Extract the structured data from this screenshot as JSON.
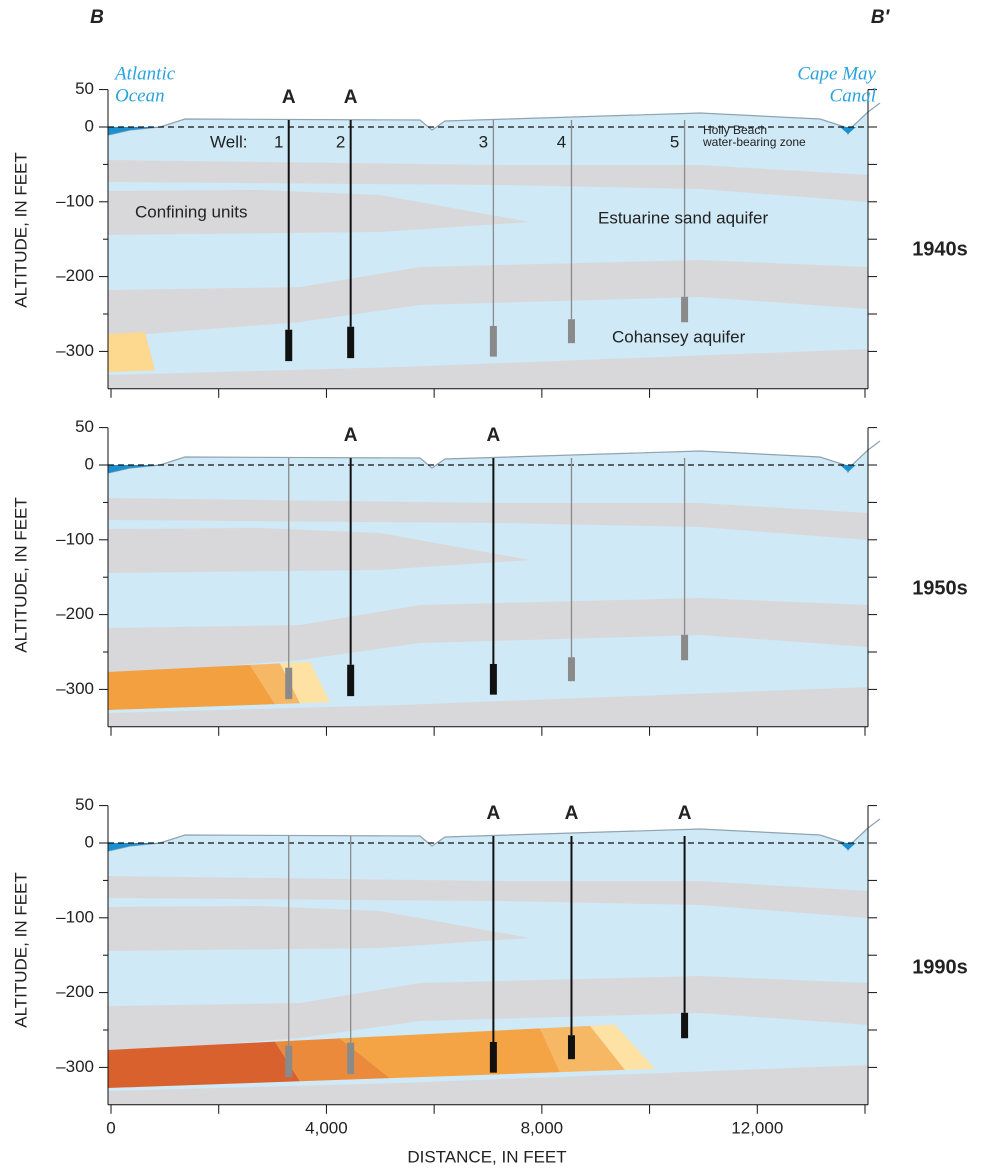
{
  "header": {
    "left_label": "B",
    "right_label": "B′"
  },
  "axes": {
    "y_title": "ALTITUDE, IN FEET",
    "x_title": "DISTANCE, IN FEET",
    "ylim": [
      -350,
      50
    ],
    "xlim": [
      0,
      14000
    ],
    "yticks": [
      50,
      0,
      {
        "value": -100,
        "label": "–100"
      },
      {
        "value": -200,
        "label": "–200"
      },
      {
        "value": -300,
        "label": "–300"
      }
    ],
    "y_minor_ticks": [
      -50,
      -150,
      -250
    ],
    "xticks": [
      0,
      {
        "value": 4000,
        "label": "4,000"
      },
      {
        "value": 8000,
        "label": "8,000"
      },
      {
        "value": 12000,
        "label": "12,000"
      }
    ],
    "x_minor_ticks": [
      2000,
      6000,
      10000,
      14000
    ]
  },
  "annotations": {
    "ocean": [
      "Atlantic",
      "Ocean"
    ],
    "canal": [
      "Cape May",
      "Canal"
    ],
    "well_prefix": "Well:",
    "holly": [
      "Holly Beach",
      "water-bearing zone"
    ],
    "confining": "Confining units",
    "estuarine": "Estuarine  sand aquifer",
    "cohansey": "Cohansey aquifer"
  },
  "wells": [
    {
      "label": "1",
      "x": 3300,
      "screen_top": -271,
      "screen_bottom": -313
    },
    {
      "label": "2",
      "x": 4450,
      "screen_top": -267,
      "screen_bottom": -309
    },
    {
      "label": "3",
      "x": 7100,
      "screen_top": -266,
      "screen_bottom": -307
    },
    {
      "label": "4",
      "x": 8550,
      "screen_top": -257,
      "screen_bottom": -289
    },
    {
      "label": "5",
      "x": 10650,
      "screen_top": -227,
      "screen_bottom": -261
    }
  ],
  "panels": [
    {
      "decade": "1940s",
      "well_labels": [
        "A",
        "A",
        null,
        null,
        null
      ]
    },
    {
      "decade": "1950s",
      "well_labels": [
        null,
        "A",
        "A",
        null,
        null
      ]
    },
    {
      "decade": "1990s",
      "well_labels": [
        null,
        null,
        "A",
        "A",
        "A"
      ]
    }
  ]
}
